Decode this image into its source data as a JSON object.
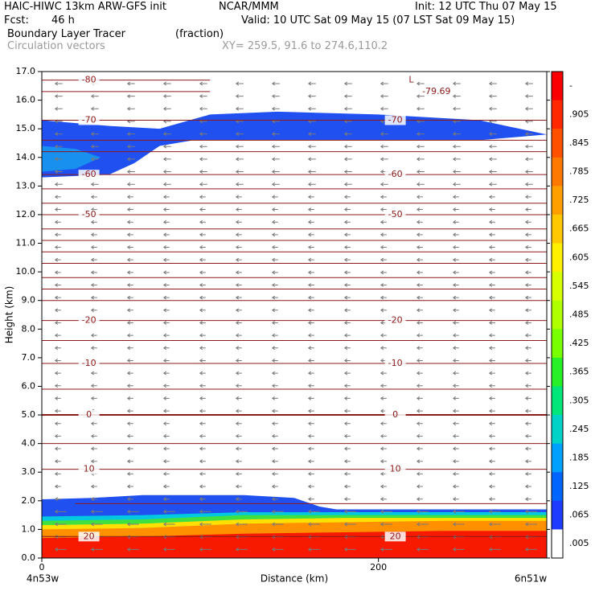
{
  "header": {
    "model": "HAIC-HIWC 13km ARW-GFS init",
    "org": "NCAR/MMM",
    "init": "Init: 12 UTC Thu 07 May 15",
    "fcst_label": "Fcst:",
    "fcst_value": "46 h",
    "valid": "Valid: 10 UTC Sat 09 May 15 (07 LST Sat 09 May 15)",
    "field_name": "Boundary Layer Tracer",
    "field_unit": "(fraction)",
    "overlay": "Circulation vectors",
    "xy": "XY= 259.5, 91.6 to 274.6,110.2"
  },
  "chart_data": {
    "type": "heatmap",
    "xlabel": "Distance (km)",
    "ylabel": "Height (km)",
    "xlim": [
      0,
      300
    ],
    "ylim": [
      0,
      17
    ],
    "x_ticks": [
      {
        "v": 0,
        "label": "0"
      },
      {
        "v": 200,
        "label": "200"
      }
    ],
    "x_end_labels": {
      "left": "4n53w",
      "right": "6n51w"
    },
    "y_ticks": [
      0,
      1,
      2,
      3,
      4,
      5,
      6,
      7,
      8,
      9,
      10,
      11,
      12,
      13,
      14,
      15,
      16,
      17
    ],
    "y_tick_labels": [
      "0.0",
      "1.0",
      "2.0",
      "3.0",
      "4.0",
      "5.0",
      "6.0",
      "7.0",
      "8.0",
      "9.0",
      "10.0",
      "11.0",
      "12.0",
      "13.0",
      "14.0",
      "15.0",
      "16.0",
      "17.0"
    ],
    "colorbar": {
      "labels": [
        "-",
        ".905",
        ".845",
        ".785",
        ".725",
        ".665",
        ".605",
        ".545",
        ".485",
        ".425",
        ".365",
        ".305",
        ".245",
        ".185",
        ".125",
        ".065",
        ".005"
      ],
      "colors": [
        "#fa0000",
        "#ff2800",
        "#ff5000",
        "#ff7800",
        "#ffa000",
        "#ffc800",
        "#fff000",
        "#d8ff00",
        "#b0ff00",
        "#78ff00",
        "#28f028",
        "#00e67a",
        "#00d2c8",
        "#00a0ff",
        "#0064ff",
        "#1e3cff",
        "#ffffff"
      ]
    },
    "tracer_bands": [
      {
        "name": "surface",
        "color": "#f81a00",
        "top": [
          [
            0,
            0.7
          ],
          [
            60,
            0.75
          ],
          [
            120,
            0.85
          ],
          [
            180,
            0.9
          ],
          [
            240,
            0.95
          ],
          [
            300,
            0.95
          ]
        ],
        "bottom": 0
      },
      {
        "name": "orange",
        "color": "#ff9000",
        "top": [
          [
            0,
            1.0
          ],
          [
            60,
            1.05
          ],
          [
            120,
            1.2
          ],
          [
            180,
            1.25
          ],
          [
            240,
            1.3
          ],
          [
            300,
            1.3
          ]
        ]
      },
      {
        "name": "yellow",
        "color": "#ffe000",
        "top": [
          [
            0,
            1.15
          ],
          [
            60,
            1.2
          ],
          [
            120,
            1.35
          ],
          [
            180,
            1.4
          ],
          [
            240,
            1.4
          ],
          [
            300,
            1.4
          ]
        ]
      },
      {
        "name": "green",
        "color": "#40e040",
        "top": [
          [
            0,
            1.3
          ],
          [
            60,
            1.35
          ],
          [
            120,
            1.5
          ],
          [
            180,
            1.5
          ],
          [
            240,
            1.5
          ],
          [
            300,
            1.5
          ]
        ]
      },
      {
        "name": "cyan",
        "color": "#00c8e0",
        "top": [
          [
            0,
            1.45
          ],
          [
            60,
            1.5
          ],
          [
            120,
            1.6
          ],
          [
            180,
            1.6
          ],
          [
            240,
            1.6
          ],
          [
            300,
            1.6
          ]
        ]
      },
      {
        "name": "blue",
        "color": "#2050f0",
        "top": [
          [
            0,
            2.05
          ],
          [
            30,
            2.1
          ],
          [
            60,
            2.2
          ],
          [
            90,
            2.2
          ],
          [
            120,
            2.2
          ],
          [
            150,
            2.1
          ],
          [
            160,
            1.9
          ],
          [
            165,
            1.8
          ],
          [
            175,
            1.7
          ],
          [
            240,
            1.7
          ],
          [
            300,
            1.7
          ]
        ]
      }
    ],
    "upper_layer": {
      "outer": [
        [
          0,
          15.3
        ],
        [
          40,
          15.1
        ],
        [
          70,
          15.0
        ],
        [
          100,
          15.5
        ],
        [
          140,
          15.6
        ],
        [
          200,
          15.5
        ],
        [
          260,
          15.3
        ],
        [
          300,
          14.8
        ],
        [
          260,
          14.6
        ],
        [
          200,
          14.6
        ],
        [
          140,
          14.6
        ],
        [
          90,
          14.6
        ],
        [
          70,
          14.4
        ],
        [
          55,
          13.8
        ],
        [
          40,
          13.4
        ],
        [
          0,
          13.3
        ]
      ],
      "inner": [
        [
          0,
          14.4
        ],
        [
          20,
          14.3
        ],
        [
          35,
          14.0
        ],
        [
          20,
          13.6
        ],
        [
          0,
          13.5
        ]
      ],
      "outer_color": "#2050f0",
      "inner_color": "#1890f0"
    },
    "isotherms": [
      {
        "y": 16.7,
        "x0": 0,
        "x1": 100,
        "label": "-80"
      },
      {
        "y": 16.3,
        "x0": 0,
        "x1": 100
      },
      {
        "y": 15.3,
        "label": "-70"
      },
      {
        "y": 14.6
      },
      {
        "y": 14.2
      },
      {
        "y": 13.4,
        "label": "-60"
      },
      {
        "y": 12.9
      },
      {
        "y": 12.4
      },
      {
        "y": 12.0,
        "label": "-50"
      },
      {
        "y": 11.5
      },
      {
        "y": 11.1
      },
      {
        "y": 10.7
      },
      {
        "y": 10.3
      },
      {
        "y": 9.8
      },
      {
        "y": 9.4
      },
      {
        "y": 9.0
      },
      {
        "y": 8.3,
        "label": "-20"
      },
      {
        "y": 7.6
      },
      {
        "y": 6.8,
        "label": "-10"
      },
      {
        "y": 5.9
      },
      {
        "y": 5.0,
        "label": "0",
        "thick": true
      },
      {
        "y": 4.0
      },
      {
        "y": 3.1,
        "label": "10"
      },
      {
        "y": 1.9,
        "x0": 20,
        "x1": 300
      },
      {
        "y": 0.75,
        "label": "20"
      }
    ],
    "annotations": [
      {
        "x": 218,
        "y": 16.7,
        "text": "L"
      },
      {
        "x": 226,
        "y": 16.3,
        "text": "-79.69"
      }
    ]
  }
}
